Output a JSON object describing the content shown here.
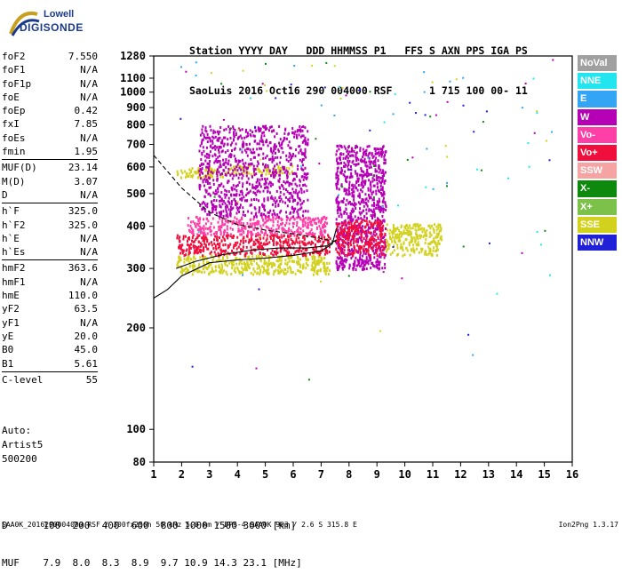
{
  "logo": {
    "line1": "Lowell",
    "line2": "DIGISONDE"
  },
  "header": {
    "labels": "Station YYYY DAY   DDD HHMMSS P1   FFS S AXN PPS IGA PS",
    "values": "SaoLuis 2016 Oct16 290 004000 RSF      1 715 100 00- 11"
  },
  "parameters": [
    {
      "label": "foF2",
      "value": "7.550"
    },
    {
      "label": "foF1",
      "value": "N/A"
    },
    {
      "label": "foF1p",
      "value": "N/A"
    },
    {
      "label": "foE",
      "value": "N/A"
    },
    {
      "label": "foEp",
      "value": "0.42"
    },
    {
      "label": "fxI",
      "value": "7.85"
    },
    {
      "label": "foEs",
      "value": "N/A"
    },
    {
      "label": "fmin",
      "value": "1.95"
    },
    {
      "label": "MUF(D)",
      "value": "23.14"
    },
    {
      "label": "M(D)",
      "value": "3.07"
    },
    {
      "label": "D",
      "value": "N/A"
    },
    {
      "label": "h`F",
      "value": "325.0"
    },
    {
      "label": "h`F2",
      "value": "325.0"
    },
    {
      "label": "h`E",
      "value": "N/A"
    },
    {
      "label": "h`Es",
      "value": "N/A"
    },
    {
      "label": "hmF2",
      "value": "363.6"
    },
    {
      "label": "hmF1",
      "value": "N/A"
    },
    {
      "label": "hmE",
      "value": "110.0"
    },
    {
      "label": "yF2",
      "value": "63.5"
    },
    {
      "label": "yF1",
      "value": "N/A"
    },
    {
      "label": "yE",
      "value": "20.0"
    },
    {
      "label": "B0",
      "value": "45.0"
    },
    {
      "label": "B1",
      "value": "5.61"
    },
    {
      "label": "C-level",
      "value": "55"
    }
  ],
  "auto": {
    "line1": "Auto:",
    "line2": "Artist5",
    "line3": "500200"
  },
  "legend": [
    {
      "label": "NoVal",
      "color": "#a0a0a0"
    },
    {
      "label": "NNE",
      "color": "#22e5f0"
    },
    {
      "label": "E",
      "color": "#34a4f4"
    },
    {
      "label": "W",
      "color": "#b500b5"
    },
    {
      "label": "Vo-",
      "color": "#ff3fa8"
    },
    {
      "label": "Vo+",
      "color": "#f00f3c"
    },
    {
      "label": "SSW",
      "color": "#f5a3a3"
    },
    {
      "label": "X-",
      "color": "#0d8a0d"
    },
    {
      "label": "X+",
      "color": "#7cc24a"
    },
    {
      "label": "SSE",
      "color": "#d2d21e"
    },
    {
      "label": "NNW",
      "color": "#2020d8"
    }
  ],
  "chart_data": {
    "type": "scatter",
    "title": "",
    "xlabel": "",
    "ylabel": "",
    "xlim": [
      1,
      16
    ],
    "ylim_log": [
      80,
      1280
    ],
    "x_ticks": [
      "1",
      "2",
      "3",
      "4",
      "5",
      "6",
      "7",
      "8",
      "9",
      "10",
      "11",
      "12",
      "13",
      "14",
      "15",
      "16"
    ],
    "y_ticks": [
      "80",
      "100",
      "200",
      "300",
      "400",
      "500",
      "600",
      "700",
      "800",
      "900",
      "1000",
      "1100",
      "1280"
    ],
    "y_tick_values": [
      80,
      100,
      200,
      300,
      400,
      500,
      600,
      700,
      800,
      900,
      1000,
      1100,
      1280
    ],
    "echo_regions": [
      {
        "x": [
          1.8,
          3.6
        ],
        "y": [
          560,
          600
        ],
        "color": "#d2d21e"
      },
      {
        "x": [
          3.6,
          6.0
        ],
        "y": [
          575,
          610
        ],
        "color": "#d2d21e"
      },
      {
        "x": [
          1.8,
          7.3
        ],
        "y": [
          290,
          330
        ],
        "color": "#d2d21e"
      },
      {
        "x": [
          1.8,
          7.3
        ],
        "y": [
          330,
          380
        ],
        "color": "#f00f3c"
      },
      {
        "x": [
          2.2,
          7.2
        ],
        "y": [
          380,
          430
        ],
        "color": "#ff3fa8"
      },
      {
        "x": [
          2.6,
          6.5
        ],
        "y": [
          430,
          800
        ],
        "color": "#b500b5"
      },
      {
        "x": [
          7.5,
          9.3
        ],
        "y": [
          300,
          700
        ],
        "color": "#b500b5"
      },
      {
        "x": [
          7.5,
          9.3
        ],
        "y": [
          330,
          420
        ],
        "color": "#f00f3c"
      },
      {
        "x": [
          9.3,
          11.3
        ],
        "y": [
          330,
          410
        ],
        "color": "#d2d21e"
      }
    ],
    "traces": [
      {
        "name": "o_trace",
        "style": "solid",
        "x": [
          1.0,
          1.5,
          2.0,
          3.0,
          4.0,
          5.0,
          6.0,
          7.0,
          7.4,
          7.55
        ],
        "y": [
          245,
          260,
          285,
          312,
          318,
          322,
          328,
          338,
          355,
          395
        ]
      },
      {
        "name": "h_profile",
        "style": "solid",
        "x": [
          1.8,
          2.5,
          3.5,
          4.5,
          5.5,
          6.5,
          7.2,
          7.55
        ],
        "y": [
          300,
          315,
          330,
          340,
          345,
          345,
          350,
          365
        ]
      },
      {
        "name": "x_trace",
        "style": "dashed",
        "x": [
          1.0,
          2.0,
          3.0,
          4.0,
          5.0,
          6.0,
          7.0,
          7.55
        ],
        "y": [
          650,
          520,
          440,
          405,
          390,
          380,
          368,
          360
        ]
      }
    ]
  },
  "dmuf": {
    "d_line": "D      100  200  400  600  800 1000 1500 3000 [km]",
    "muf_line": "MUF    7.9  8.0  8.3  8.9  9.7 10.9 14.3 23.1 [MHz]"
  },
  "footer": "SAA0K_2016290004000.RSF / 300fx256h 50 kHz 5.0 km / DPS-4 SAA0K 903 / 2.6 S 315.8 E",
  "version": "Ion2Png 1.3.17"
}
